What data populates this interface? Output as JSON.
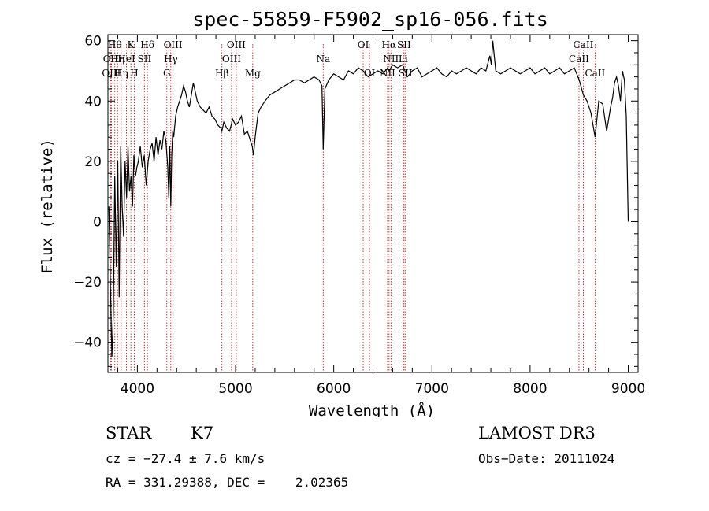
{
  "chart_data": {
    "type": "line",
    "title": "spec-55859-F5902_sp16-056.fits",
    "xlabel": "Wavelength (Å)",
    "ylabel": "Flux (relative)",
    "xlim": [
      3700,
      9100
    ],
    "ylim": [
      -50,
      62
    ],
    "xticks": [
      4000,
      5000,
      6000,
      7000,
      8000,
      9000
    ],
    "yticks": [
      -40,
      -20,
      0,
      20,
      40,
      60
    ],
    "grid": false,
    "series": [
      {
        "name": "flux",
        "x": [
          3710,
          3725,
          3740,
          3755,
          3770,
          3785,
          3800,
          3815,
          3830,
          3845,
          3860,
          3875,
          3890,
          3905,
          3920,
          3935,
          3950,
          3965,
          3980,
          3995,
          4010,
          4030,
          4050,
          4070,
          4090,
          4110,
          4130,
          4150,
          4170,
          4190,
          4210,
          4230,
          4250,
          4270,
          4290,
          4310,
          4320,
          4330,
          4340,
          4350,
          4360,
          4370,
          4390,
          4410,
          4430,
          4450,
          4470,
          4490,
          4510,
          4530,
          4550,
          4570,
          4590,
          4610,
          4640,
          4670,
          4700,
          4730,
          4760,
          4790,
          4820,
          4850,
          4861,
          4880,
          4910,
          4940,
          4970,
          5000,
          5030,
          5060,
          5090,
          5120,
          5150,
          5170,
          5183,
          5200,
          5230,
          5260,
          5300,
          5350,
          5400,
          5450,
          5500,
          5550,
          5600,
          5650,
          5700,
          5750,
          5800,
          5850,
          5880,
          5893,
          5910,
          5950,
          6000,
          6050,
          6100,
          6150,
          6200,
          6250,
          6300,
          6350,
          6400,
          6450,
          6500,
          6550,
          6563,
          6600,
          6650,
          6700,
          6750,
          6800,
          6850,
          6900,
          6950,
          7000,
          7050,
          7100,
          7150,
          7200,
          7250,
          7300,
          7350,
          7400,
          7450,
          7500,
          7550,
          7590,
          7605,
          7620,
          7650,
          7700,
          7750,
          7800,
          7850,
          7900,
          7950,
          8000,
          8050,
          8100,
          8150,
          8200,
          8250,
          8300,
          8350,
          8400,
          8450,
          8500,
          8542,
          8580,
          8620,
          8662,
          8700,
          8740,
          8780,
          8820,
          8840,
          8860,
          8880,
          8900,
          8920,
          8940,
          8960,
          8980,
          9000
        ],
        "y": [
          5,
          -20,
          -45,
          -30,
          15,
          -15,
          20,
          -25,
          25,
          5,
          -5,
          20,
          8,
          25,
          10,
          15,
          5,
          22,
          15,
          18,
          20,
          25,
          18,
          22,
          12,
          20,
          24,
          26,
          20,
          28,
          22,
          27,
          24,
          30,
          27,
          18,
          8,
          25,
          5,
          22,
          30,
          28,
          35,
          38,
          40,
          42,
          45,
          43,
          40,
          38,
          42,
          46,
          43,
          40,
          38,
          37,
          36,
          38,
          35,
          34,
          32,
          31,
          30,
          33,
          31,
          30,
          34,
          32,
          33,
          35,
          29,
          30,
          27,
          25,
          22,
          28,
          36,
          38,
          40,
          42,
          43,
          44,
          45,
          46,
          47,
          47,
          46,
          47,
          48,
          47,
          45,
          24,
          44,
          47,
          49,
          48,
          47,
          50,
          49,
          51,
          50,
          48,
          49,
          50,
          49,
          51,
          50,
          52,
          51,
          52,
          48,
          50,
          51,
          48,
          49,
          50,
          51,
          49,
          48,
          50,
          49,
          50,
          51,
          50,
          49,
          51,
          50,
          55,
          52,
          60,
          50,
          49,
          50,
          51,
          50,
          49,
          50,
          51,
          49,
          50,
          51,
          49,
          50,
          51,
          49,
          50,
          51,
          47,
          42,
          40,
          36,
          28,
          40,
          39,
          30,
          38,
          41,
          46,
          48,
          45,
          40,
          50,
          47,
          35,
          0
        ]
      }
    ],
    "lines": [
      {
        "x": 3727,
        "label": "OII",
        "row": 1
      },
      {
        "x": 3735,
        "label": "OIII",
        "row": 2
      },
      {
        "x": 3770,
        "label": "Hθ",
        "row": 0
      },
      {
        "x": 3798,
        "label": "Hη",
        "row": 1
      },
      {
        "x": 3835,
        "label": "Hη",
        "row": 2
      },
      {
        "x": 3889,
        "label": "HeI",
        "row": 1
      },
      {
        "x": 3934,
        "label": "K",
        "row": 0
      },
      {
        "x": 3969,
        "label": "H",
        "row": 2
      },
      {
        "x": 4072,
        "label": "SII",
        "row": 1
      },
      {
        "x": 4102,
        "label": "Hδ",
        "row": 0
      },
      {
        "x": 4300,
        "label": "G",
        "row": 2
      },
      {
        "x": 4340,
        "label": "Hγ",
        "row": 1
      },
      {
        "x": 4363,
        "label": "OIII",
        "row": 0
      },
      {
        "x": 4861,
        "label": "Hβ",
        "row": 2
      },
      {
        "x": 4959,
        "label": "OIII",
        "row": 1
      },
      {
        "x": 5007,
        "label": "OIII",
        "row": 0
      },
      {
        "x": 5175,
        "label": "Mg",
        "row": 2
      },
      {
        "x": 5893,
        "label": "Na",
        "row": 1
      },
      {
        "x": 6300,
        "label": "OI",
        "row": 0
      },
      {
        "x": 6364,
        "label": "OI",
        "row": 2
      },
      {
        "x": 6548,
        "label": "NII",
        "row": 2
      },
      {
        "x": 6563,
        "label": "Hα",
        "row": 0
      },
      {
        "x": 6583,
        "label": "NII",
        "row": 1
      },
      {
        "x": 6707,
        "label": "Li",
        "row": 1
      },
      {
        "x": 6716,
        "label": "SII",
        "row": 0
      },
      {
        "x": 6731,
        "label": "SII",
        "row": 2
      },
      {
        "x": 8498,
        "label": "CaII",
        "row": 1
      },
      {
        "x": 8542,
        "label": "CaII",
        "row": 0
      },
      {
        "x": 8662,
        "label": "CaII",
        "row": 2
      }
    ]
  },
  "info": {
    "class_label": "STAR",
    "subclass": "K7",
    "survey": "LAMOST DR3",
    "cz": "cz = −27.4 ± 7.6 km/s",
    "obs_date": "Obs−Date: 20111024",
    "coords": "RA = 331.29388, DEC =    2.02365"
  }
}
